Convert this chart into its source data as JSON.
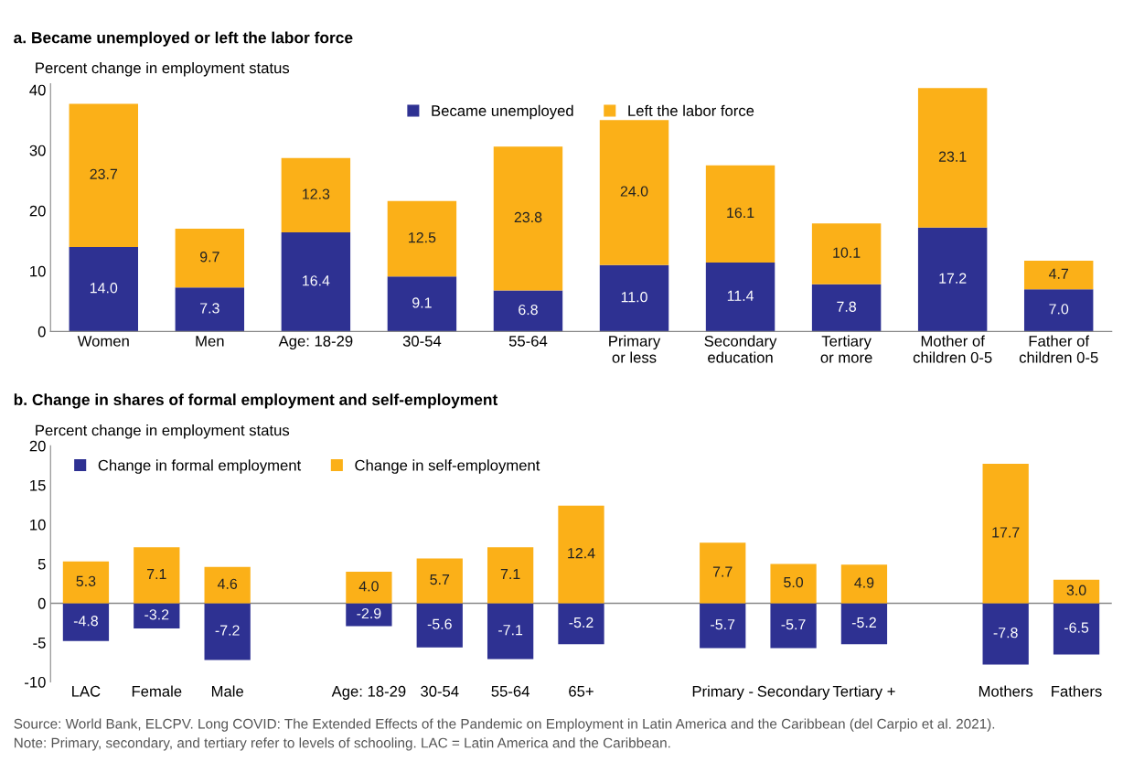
{
  "chart_data": [
    {
      "type": "bar",
      "stacked": true,
      "title": "a. Became unemployed or left the labor force",
      "ylabel": "Percent change in employment status",
      "categories": [
        "Women",
        "Men",
        "Age: 18-29",
        "30-54",
        "55-64",
        "Primary\nor less",
        "Secondary\neducation",
        "Tertiary\nor more",
        "Mother of\nchildren 0-5",
        "Father of\nchildren 0-5"
      ],
      "series": [
        {
          "name": "Became unemployed",
          "color": "#2e3192",
          "values": [
            14.0,
            7.3,
            16.4,
            9.1,
            6.8,
            11.0,
            11.4,
            7.8,
            17.2,
            7.0
          ],
          "value_labels": [
            "14.0",
            "7.3",
            "16.4",
            "9.1",
            "6.8",
            "11.0",
            "11.4",
            "7.8",
            "17.2",
            "7.0"
          ]
        },
        {
          "name": "Left the labor force",
          "color": "#fbb018",
          "values": [
            23.7,
            9.7,
            12.3,
            12.5,
            23.8,
            24.0,
            16.1,
            10.1,
            23.1,
            4.7
          ],
          "value_labels": [
            "23.7",
            "9.7",
            "12.3",
            "12.5",
            "23.8",
            "24.0",
            "16.1",
            "10.1",
            "23.1",
            "4.7"
          ]
        }
      ],
      "ylim": [
        0,
        41
      ],
      "yticks": [
        0,
        10,
        20,
        30,
        40
      ],
      "legend": "top",
      "grid": false
    },
    {
      "type": "bar",
      "stacked": true,
      "title": "b. Change in shares of formal employment and self-employment",
      "ylabel": "Percent change in employment status",
      "categories": [
        "LAC",
        "Female",
        "Male",
        null,
        "Age: 18-29",
        "30-54",
        "55-64",
        "65+",
        null,
        "Primary -",
        "Secondary",
        "Tertiary +",
        null,
        "Mothers",
        "Fathers"
      ],
      "series": [
        {
          "name": "Change in formal employment",
          "color": "#2e3192",
          "values": [
            -4.8,
            -3.2,
            -7.2,
            null,
            -2.9,
            -5.6,
            -7.1,
            -5.2,
            null,
            -5.7,
            -5.7,
            -5.2,
            null,
            -7.8,
            -6.5
          ],
          "value_labels": [
            "-4.8",
            "-3.2",
            "-7.2",
            null,
            "-2.9",
            "-5.6",
            "-7.1",
            "-5.2",
            null,
            "-5.7",
            "-5.7",
            "-5.2",
            null,
            "-7.8",
            "-6.5"
          ]
        },
        {
          "name": "Change in self-employment",
          "color": "#fbb018",
          "values": [
            5.3,
            7.1,
            4.6,
            null,
            4.0,
            5.7,
            7.1,
            12.4,
            null,
            7.7,
            5.0,
            4.9,
            null,
            17.7,
            3.0
          ],
          "value_labels": [
            "5.3",
            "7.1",
            "4.6",
            null,
            "4.0",
            "5.7",
            "7.1",
            "12.4",
            null,
            "7.7",
            "5.0",
            "4.9",
            null,
            "17.7",
            "3.0"
          ]
        }
      ],
      "ylim": [
        -10,
        20
      ],
      "yticks": [
        -10,
        -5,
        0,
        5,
        10,
        15,
        20
      ],
      "legend": "top left",
      "grid": false,
      "ref_lines": [
        {
          "axis": "y",
          "value": 0,
          "color": "#888888"
        }
      ],
      "annotations": [
        "Source: World Bank, ELCPV. Long COVID: The Extended Effects of the Pandemic on Employment in Latin America and the Caribbean (del Carpio et al. 2021).",
        "Note: Primary, secondary, and tertiary refer to levels of schooling. LAC = Latin America and the Caribbean."
      ]
    }
  ]
}
